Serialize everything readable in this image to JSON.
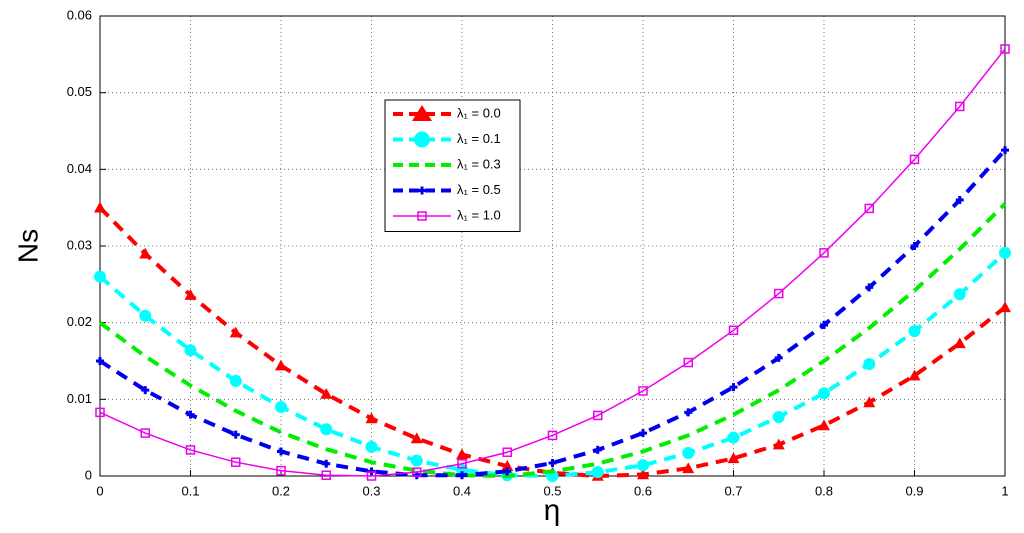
{
  "chart_data": {
    "type": "line",
    "xlabel": "η",
    "ylabel": "Ns",
    "x": [
      0,
      0.05,
      0.1,
      0.15,
      0.2,
      0.25,
      0.3,
      0.35,
      0.4,
      0.45,
      0.5,
      0.55,
      0.6,
      0.65,
      0.7,
      0.75,
      0.8,
      0.85,
      0.9,
      0.95,
      1
    ],
    "series": [
      {
        "name": "λ₁ = 0.0",
        "color": "#ff0000",
        "marker": "triangle",
        "dashed": true,
        "values": [
          0.035,
          0.029,
          0.0236,
          0.0187,
          0.0144,
          0.0107,
          0.0075,
          0.0049,
          0.0028,
          0.0013,
          0.0004,
          0,
          0.0002,
          0.001,
          0.0023,
          0.0041,
          0.0066,
          0.0096,
          0.0131,
          0.0173,
          0.022
        ]
      },
      {
        "name": "λ₁ = 0.1",
        "color": "#00ffff",
        "marker": "circle",
        "dashed": true,
        "values": [
          0.026,
          0.0209,
          0.0164,
          0.0124,
          0.009,
          0.0061,
          0.0038,
          0.002,
          0.0008,
          0.0001,
          0,
          0.0005,
          0.0014,
          0.003,
          0.005,
          0.0077,
          0.0108,
          0.0146,
          0.0189,
          0.0237,
          0.0291
        ]
      },
      {
        "name": "λ₁ = 0.3",
        "color": "#00ee00",
        "marker": "none",
        "dashed": true,
        "values": [
          0.02,
          0.0156,
          0.0118,
          0.0085,
          0.0057,
          0.0035,
          0.0018,
          0.0007,
          0.0001,
          0,
          0.0006,
          0.0016,
          0.0032,
          0.0053,
          0.008,
          0.0112,
          0.015,
          0.0193,
          0.0242,
          0.0296,
          0.0355
        ]
      },
      {
        "name": "λ₁ = 0.5",
        "color": "#0000ee",
        "marker": "plus",
        "dashed": true,
        "values": [
          0.015,
          0.0112,
          0.008,
          0.0054,
          0.0032,
          0.0016,
          0.0006,
          0.0001,
          0.0001,
          0.0006,
          0.0017,
          0.0034,
          0.0056,
          0.0083,
          0.0116,
          0.0154,
          0.0197,
          0.0246,
          0.03,
          0.036,
          0.0425
        ]
      },
      {
        "name": "λ₁ = 1.0",
        "color": "#ee00ee",
        "marker": "square",
        "dashed": false,
        "values": [
          0.0083,
          0.0056,
          0.0034,
          0.0018,
          0.0007,
          0.0001,
          0,
          0.0005,
          0.0016,
          0.0031,
          0.0053,
          0.0079,
          0.0111,
          0.0148,
          0.019,
          0.0238,
          0.0291,
          0.0349,
          0.0413,
          0.0482,
          0.0557
        ]
      }
    ],
    "xlim": [
      0,
      1
    ],
    "xticks": [
      0,
      0.1,
      0.2,
      0.3,
      0.4,
      0.5,
      0.6,
      0.7,
      0.8,
      0.9,
      1
    ],
    "ylim": [
      0,
      0.06
    ],
    "yticks": [
      0,
      0.01,
      0.02,
      0.03,
      0.04,
      0.05,
      0.06
    ],
    "grid": true,
    "legend": "upper center"
  }
}
